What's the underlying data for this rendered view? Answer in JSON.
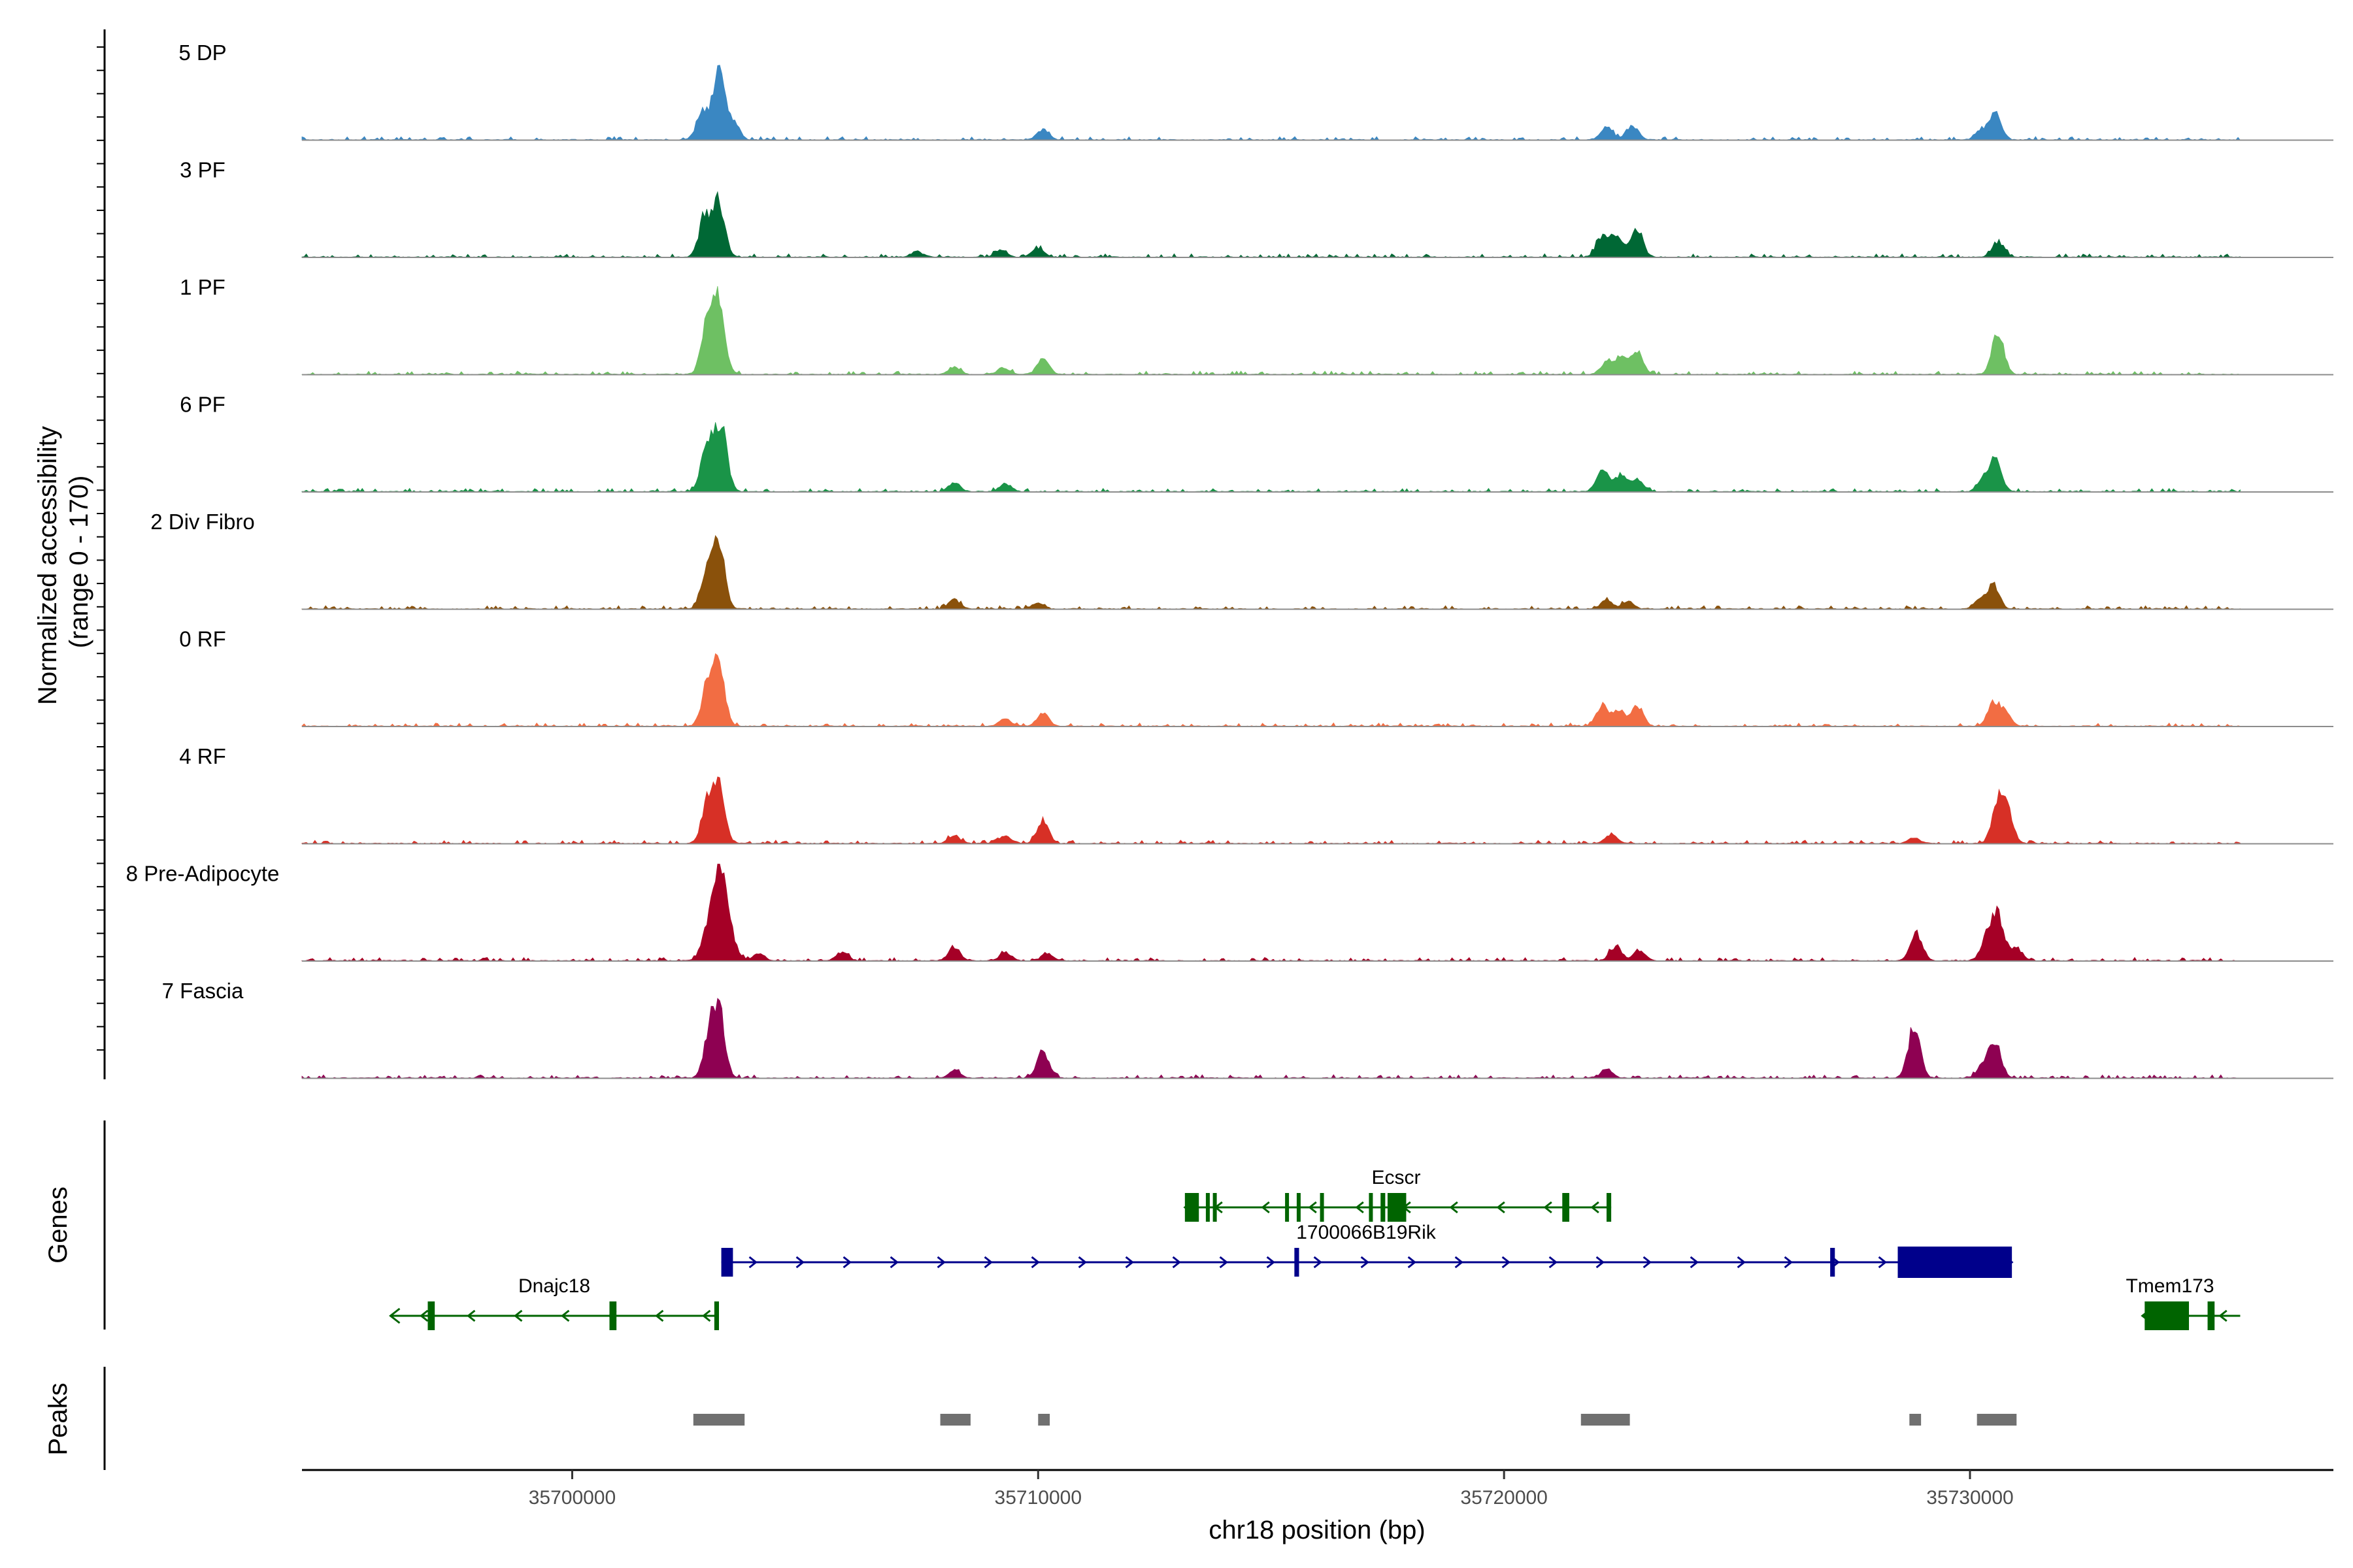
{
  "chart_data": {
    "type": "area",
    "title": "",
    "xlabel": "chr18 position (bp)",
    "ylabel": "Normalized accessibility\n(range 0 - 170)",
    "ylabel_lines": [
      "Normalized accessibility",
      "(range 0 - 170)"
    ],
    "y_range": [
      0,
      170
    ],
    "xlim": [
      35694200,
      35737800
    ],
    "x_ticks": [
      35700000,
      35710000,
      35720000,
      35730000
    ],
    "x_tick_labels": [
      "35700000",
      "35710000",
      "35720000",
      "35730000"
    ],
    "panel_labels": {
      "genes": "Genes",
      "peaks": "Peaks"
    },
    "tracks": [
      {
        "name": "5 DP",
        "color": "#3a87c2",
        "peaks": [
          [
            35702800,
            0.42
          ],
          [
            35703150,
            0.95
          ],
          [
            35703450,
            0.25
          ],
          [
            35710100,
            0.14
          ],
          [
            35722200,
            0.18
          ],
          [
            35722750,
            0.2
          ],
          [
            35730550,
            0.35
          ],
          [
            35730250,
            0.13
          ]
        ]
      },
      {
        "name": "3 PF",
        "color": "#006835",
        "peaks": [
          [
            35702850,
            0.55
          ],
          [
            35703150,
            0.75
          ],
          [
            35707400,
            0.08
          ],
          [
            35709200,
            0.1
          ],
          [
            35710000,
            0.12
          ],
          [
            35722100,
            0.28
          ],
          [
            35722400,
            0.28
          ],
          [
            35722850,
            0.4
          ],
          [
            35730600,
            0.22
          ]
        ]
      },
      {
        "name": "1 PF",
        "color": "#6ec063",
        "peaks": [
          [
            35702900,
            0.72
          ],
          [
            35703150,
            1.0
          ],
          [
            35708200,
            0.1
          ],
          [
            35709250,
            0.09
          ],
          [
            35710100,
            0.22
          ],
          [
            35722200,
            0.17
          ],
          [
            35722500,
            0.22
          ],
          [
            35722850,
            0.33
          ],
          [
            35730600,
            0.58
          ]
        ]
      },
      {
        "name": "6 PF",
        "color": "#1a9448",
        "peaks": [
          [
            35702900,
            0.7
          ],
          [
            35703200,
            0.92
          ],
          [
            35708200,
            0.12
          ],
          [
            35709300,
            0.11
          ],
          [
            35722100,
            0.28
          ],
          [
            35722500,
            0.22
          ],
          [
            35722850,
            0.18
          ],
          [
            35730550,
            0.45
          ],
          [
            35730300,
            0.18
          ]
        ]
      },
      {
        "name": "2 Div Fibro",
        "color": "#8a510b",
        "peaks": [
          [
            35702900,
            0.55
          ],
          [
            35703150,
            0.85
          ],
          [
            35708200,
            0.13
          ],
          [
            35710000,
            0.08
          ],
          [
            35722200,
            0.12
          ],
          [
            35722650,
            0.1
          ],
          [
            35730500,
            0.32
          ],
          [
            35730200,
            0.12
          ]
        ]
      },
      {
        "name": "0 RF",
        "color": "#f26d43",
        "peaks": [
          [
            35702900,
            0.55
          ],
          [
            35703150,
            0.8
          ],
          [
            35710100,
            0.18
          ],
          [
            35709300,
            0.1
          ],
          [
            35722100,
            0.28
          ],
          [
            35722450,
            0.2
          ],
          [
            35722850,
            0.3
          ],
          [
            35730500,
            0.3
          ],
          [
            35730750,
            0.2
          ]
        ]
      },
      {
        "name": "4 RF",
        "color": "#d73026",
        "peaks": [
          [
            35702900,
            0.55
          ],
          [
            35703150,
            0.82
          ],
          [
            35708200,
            0.11
          ],
          [
            35709300,
            0.1
          ],
          [
            35710100,
            0.3
          ],
          [
            35722300,
            0.12
          ],
          [
            35728800,
            0.08
          ],
          [
            35730600,
            0.55
          ],
          [
            35730800,
            0.4
          ]
        ]
      },
      {
        "name": "8 Pre-Adipocyte",
        "color": "#a50026",
        "peaks": [
          [
            35702900,
            0.4
          ],
          [
            35703150,
            1.3
          ],
          [
            35703400,
            0.35
          ],
          [
            35704000,
            0.1
          ],
          [
            35705800,
            0.12
          ],
          [
            35708200,
            0.18
          ],
          [
            35709300,
            0.12
          ],
          [
            35710200,
            0.1
          ],
          [
            35722400,
            0.2
          ],
          [
            35722900,
            0.15
          ],
          [
            35728850,
            0.38
          ],
          [
            35730350,
            0.3
          ],
          [
            35730600,
            0.62
          ],
          [
            35731000,
            0.18
          ]
        ]
      },
      {
        "name": "7 Fascia",
        "color": "#8e0152",
        "peaks": [
          [
            35702950,
            0.55
          ],
          [
            35703150,
            0.85
          ],
          [
            35708200,
            0.1
          ],
          [
            35710100,
            0.38
          ],
          [
            35722200,
            0.12
          ],
          [
            35728800,
            0.7
          ],
          [
            35730550,
            0.45
          ],
          [
            35730300,
            0.2
          ]
        ]
      }
    ],
    "genes": [
      {
        "name": "Ecscr",
        "color": "#006400",
        "strand": "-",
        "start": 35713150,
        "end": 35722300,
        "exons": [
          [
            35713150,
            35713450
          ],
          [
            35713600,
            35713650
          ],
          [
            35713750,
            35713800
          ],
          [
            35715300,
            35715350
          ],
          [
            35715550,
            35715600
          ],
          [
            35716050,
            35716100
          ],
          [
            35717100,
            35717150
          ],
          [
            35717350,
            35717450
          ],
          [
            35717500,
            35717900
          ],
          [
            35721250,
            35721400
          ],
          [
            35722200,
            35722300
          ]
        ]
      },
      {
        "name": "1700066B19Rik",
        "color": "#00008b",
        "strand": "+",
        "start": 35703200,
        "end": 35730900,
        "exons": [
          [
            35703200,
            35703450
          ],
          [
            35715500,
            35715600
          ],
          [
            35727000,
            35727100
          ],
          [
            35728450,
            35730900
          ]
        ]
      },
      {
        "name": "Dnajc18",
        "color": "#006400",
        "strand": "-",
        "start": 35696100,
        "end": 35703150,
        "exons": [
          [
            35696900,
            35697050
          ],
          [
            35700800,
            35700950
          ],
          [
            35703050,
            35703150
          ]
        ]
      },
      {
        "name": "Tmem173",
        "color": "#006400",
        "strand": "-",
        "start": 35733700,
        "end": 35735800,
        "exons": [
          [
            35733750,
            35734700
          ],
          [
            35735100,
            35735250
          ]
        ]
      }
    ],
    "peaks_track": [
      [
        35702600,
        35703700
      ],
      [
        35707900,
        35708550
      ],
      [
        35710000,
        35710250
      ],
      [
        35721650,
        35722700
      ],
      [
        35728700,
        35728950
      ],
      [
        35730150,
        35731000
      ]
    ]
  }
}
